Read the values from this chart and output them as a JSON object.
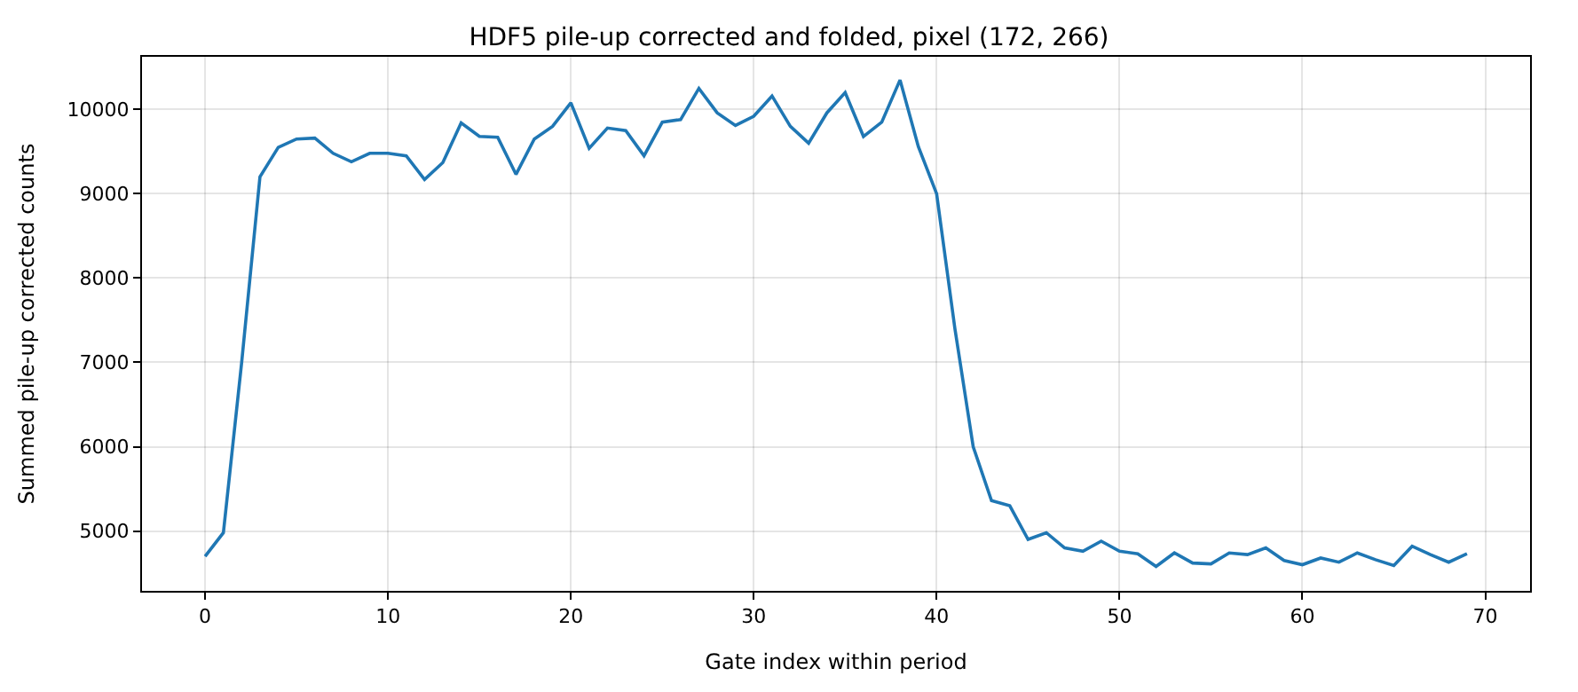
{
  "chart_data": {
    "type": "line",
    "title": "HDF5 pile-up corrected and folded, pixel (172, 266)",
    "xlabel": "Gate index within period",
    "ylabel": "Summed pile-up corrected counts",
    "x": [
      0,
      1,
      2,
      3,
      4,
      5,
      6,
      7,
      8,
      9,
      10,
      11,
      12,
      13,
      14,
      15,
      16,
      17,
      18,
      19,
      20,
      21,
      22,
      23,
      24,
      25,
      26,
      27,
      28,
      29,
      30,
      31,
      32,
      33,
      34,
      35,
      36,
      37,
      38,
      39,
      40,
      41,
      42,
      43,
      44,
      45,
      46,
      47,
      48,
      49,
      50,
      51,
      52,
      53,
      54,
      55,
      56,
      57,
      58,
      59,
      60,
      61,
      62,
      63,
      64,
      65,
      66,
      67,
      68,
      69
    ],
    "series": [
      {
        "color": "#1f77b4",
        "values": [
          4700,
          4980,
          7000,
          9200,
          9550,
          9650,
          9660,
          9480,
          9380,
          9480,
          9480,
          9450,
          9170,
          9370,
          9840,
          9680,
          9670,
          9230,
          9650,
          9800,
          10080,
          9540,
          9780,
          9750,
          9450,
          9850,
          9880,
          10250,
          9960,
          9810,
          9920,
          10160,
          9800,
          9600,
          9960,
          10200,
          9680,
          9850,
          10350,
          9560,
          9000,
          7400,
          6000,
          5360,
          5300,
          4900,
          4980,
          4800,
          4760,
          4880,
          4760,
          4730,
          4580,
          4740,
          4620,
          4610,
          4740,
          4720,
          4800,
          4650,
          4600,
          4680,
          4630,
          4740,
          4660,
          4590,
          4820,
          4720,
          4630,
          4730
        ]
      }
    ],
    "xlim": [
      -3.45,
      72.45
    ],
    "ylim": [
      4290,
      10625
    ],
    "xticks": [
      0,
      10,
      20,
      30,
      40,
      50,
      60,
      70
    ],
    "yticks": [
      5000,
      6000,
      7000,
      8000,
      9000,
      10000
    ],
    "grid": true,
    "marker": "none",
    "line_style": "solid"
  }
}
